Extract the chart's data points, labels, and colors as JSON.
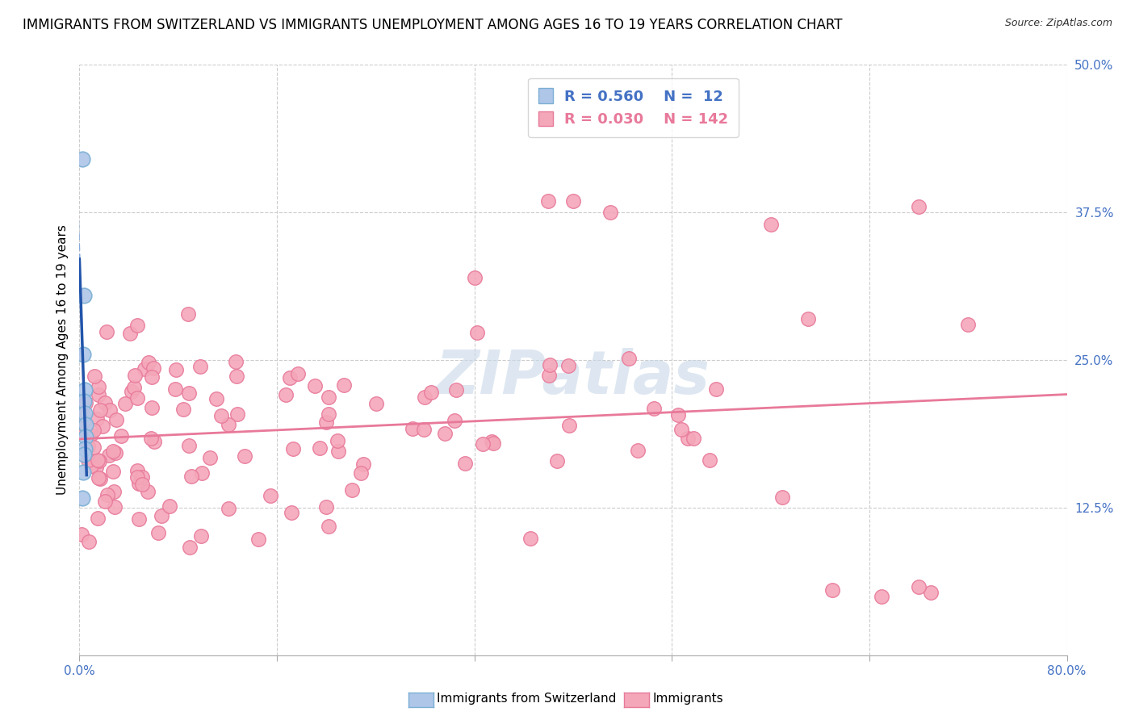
{
  "title": "IMMIGRANTS FROM SWITZERLAND VS IMMIGRANTS UNEMPLOYMENT AMONG AGES 16 TO 19 YEARS CORRELATION CHART",
  "source": "Source: ZipAtlas.com",
  "ylabel": "Unemployment Among Ages 16 to 19 years",
  "xlim": [
    0.0,
    0.8
  ],
  "ylim": [
    0.0,
    0.5
  ],
  "xticks": [
    0.0,
    0.16,
    0.32,
    0.48,
    0.64,
    0.8
  ],
  "xticklabels": [
    "0.0%",
    "",
    "",
    "",
    "",
    "80.0%"
  ],
  "ytick_positions": [
    0.0,
    0.125,
    0.25,
    0.375,
    0.5
  ],
  "yticklabels": [
    "",
    "12.5%",
    "25.0%",
    "37.5%",
    "50.0%"
  ],
  "blue_scatter_color": "#aec6e8",
  "blue_scatter_edge": "#7bafd4",
  "pink_scatter_color": "#f4a7b9",
  "pink_scatter_edge": "#e8799a",
  "blue_line_color": "#2255aa",
  "pink_line_color": "#e8799a",
  "grid_color": "#cccccc",
  "watermark": "ZIPatlas",
  "watermark_color": "#c8d8e8",
  "legend_color_blue": "#4472c4",
  "legend_color_pink": "#e8799a",
  "blue_R": 0.56,
  "blue_N": 12,
  "pink_R": 0.03,
  "pink_N": 142,
  "blue_label": "Immigrants from Switzerland",
  "pink_label": "Immigrants",
  "title_fontsize": 12,
  "axis_label_fontsize": 11,
  "tick_fontsize": 11,
  "legend_fontsize": 13
}
